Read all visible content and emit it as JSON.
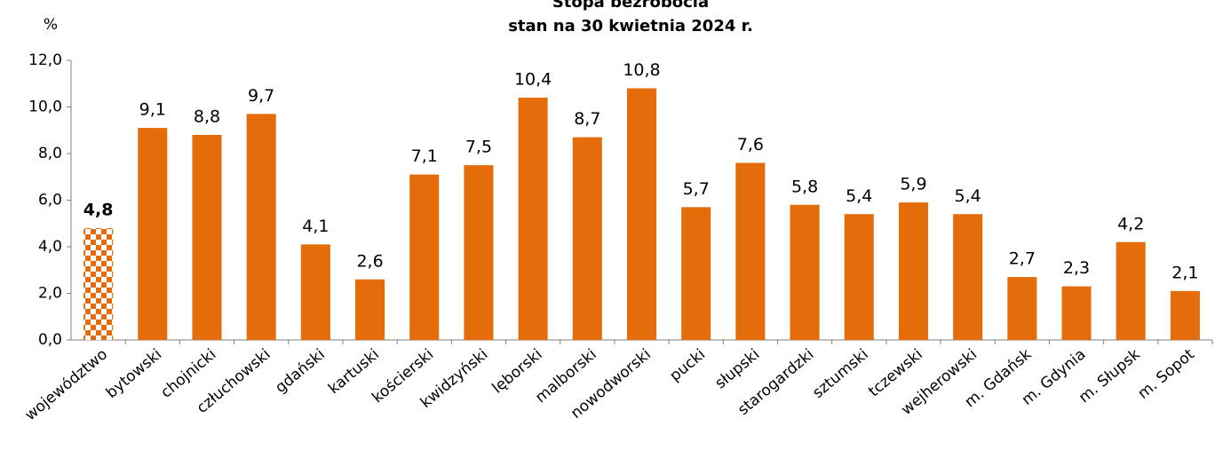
{
  "chart_data": {
    "type": "bar",
    "title": "Stopa bezrobocia",
    "subtitle": "stan na 30 kwietnia 2024 r.",
    "y_label": "%",
    "categories": [
      "województwo",
      "bytowski",
      "chojnicki",
      "człuchowski",
      "gdański",
      "kartuski",
      "kościerski",
      "kwidzyński",
      "lęborski",
      "malborski",
      "nowodworski",
      "pucki",
      "słupski",
      "starogardzki",
      "sztumski",
      "tczewski",
      "wejherowski",
      "m. Gdańsk",
      "m. Gdynia",
      "m. Słupsk",
      "m. Sopot"
    ],
    "values": [
      4.8,
      9.1,
      8.8,
      9.7,
      4.1,
      2.6,
      7.1,
      7.5,
      10.4,
      8.7,
      10.8,
      5.7,
      7.6,
      5.8,
      5.4,
      5.9,
      5.4,
      2.7,
      2.3,
      4.2,
      2.1
    ],
    "value_labels": [
      "4,8",
      "9,1",
      "8,8",
      "9,7",
      "4,1",
      "2,6",
      "7,1",
      "7,5",
      "10,4",
      "8,7",
      "10,8",
      "5,7",
      "7,6",
      "5,8",
      "5,4",
      "5,9",
      "5,4",
      "2,7",
      "2,3",
      "4,2",
      "2,1"
    ],
    "color": "#e46c0a",
    "patterned_bar": 0,
    "ylim": [
      0,
      12
    ],
    "yticks": [
      {
        "value": 0,
        "label": "0,0"
      },
      {
        "value": 2,
        "label": "2,0"
      },
      {
        "value": 4,
        "label": "4,0"
      },
      {
        "value": 6,
        "label": "6,0"
      },
      {
        "value": 8,
        "label": "8,0"
      },
      {
        "value": 10,
        "label": "10,0"
      },
      {
        "value": 12,
        "label": "12,0"
      }
    ],
    "grid": false
  }
}
